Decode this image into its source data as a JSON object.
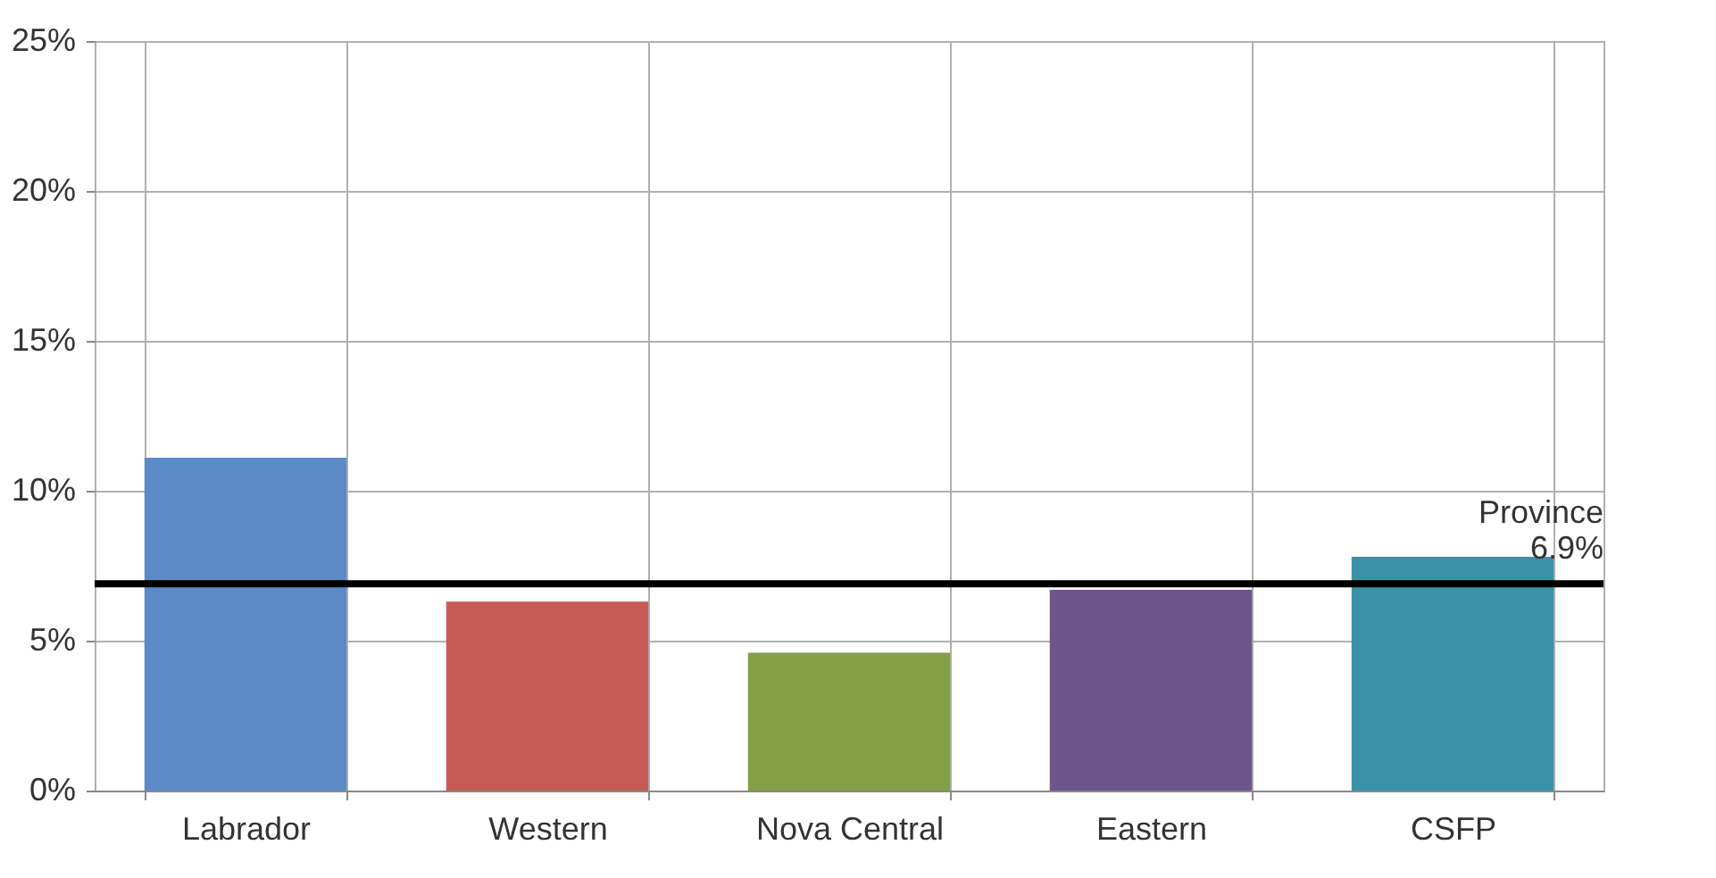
{
  "chart_data": {
    "type": "bar",
    "categories": [
      "Labrador",
      "Western",
      "Nova Central",
      "Eastern",
      "CSFP"
    ],
    "values": [
      11.1,
      6.3,
      4.6,
      6.7,
      7.8
    ],
    "colors": [
      "#5b8bc6",
      "#c65b56",
      "#84a044",
      "#6c5589",
      "#3a92a8"
    ],
    "ylim": [
      0,
      25
    ],
    "yticks": [
      {
        "value": 0,
        "label": "0%"
      },
      {
        "value": 5,
        "label": "5%"
      },
      {
        "value": 10,
        "label": "10%"
      },
      {
        "value": 15,
        "label": "15%"
      },
      {
        "value": 20,
        "label": "20%"
      },
      {
        "value": 25,
        "label": "25%"
      }
    ],
    "grid": true,
    "ref_lines": [
      {
        "axis": "y",
        "value": 6.9,
        "label": "Province 6.9%",
        "color": "#000000"
      }
    ]
  }
}
